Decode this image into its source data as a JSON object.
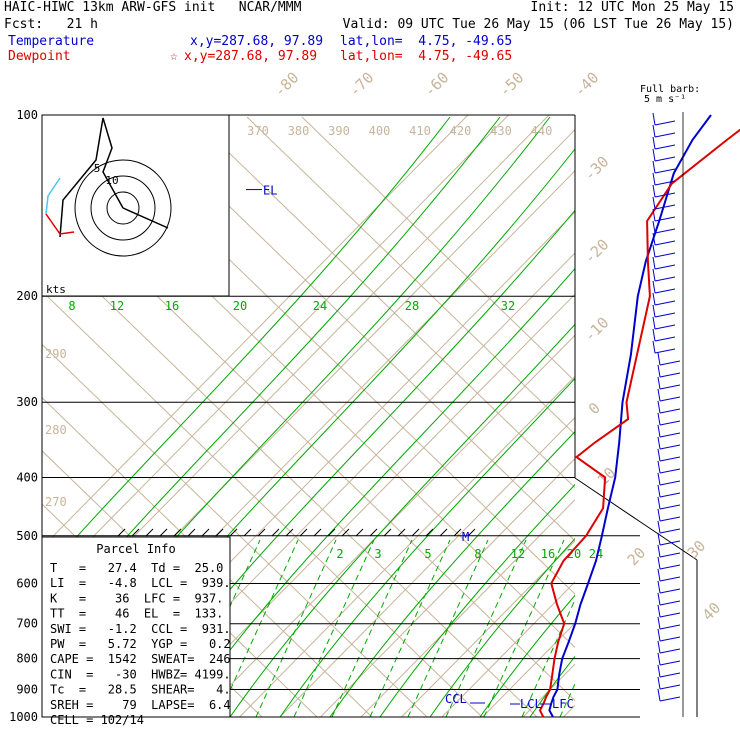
{
  "header": {
    "title_left": "HAIC-HIWC 13km ARW-GFS init   NCAR/MMM",
    "init": "Init: 12 UTC Mon 25 May 15",
    "fcst": "Fcst:   21 h",
    "valid": "Valid: 09 UTC Tue 26 May 15 (06 LST Tue 26 May 15)",
    "temp_label": "Temperature",
    "temp_xy": "x,y=287.68, 97.89",
    "temp_latlon": "lat,lon=  4.75, -49.65",
    "dew_label": "Dewpoint",
    "dew_star": "☆",
    "dew_xy": "x,y=287.68, 97.89",
    "dew_latlon": "lat,lon=  4.75, -49.65"
  },
  "barb_key": {
    "line1": "Full barb:",
    "line2": "5 m s⁻¹"
  },
  "colors": {
    "temperature": "#0000cc",
    "dewpoint": "#dd0000",
    "isotherm": "#c8b49a",
    "mixing_ratio": "#00aa00",
    "grid": "#000000"
  },
  "chart_data": {
    "type": "line",
    "title": "Skew-T log-P sounding",
    "ylabel": "Pressure (hPa)",
    "pressure_ticks": [
      "100",
      "200",
      "300",
      "400",
      "500",
      "600",
      "700",
      "800",
      "900",
      "1000"
    ],
    "isotherm_labels": [
      "-80",
      "-70",
      "-60",
      "-50",
      "-40",
      "-30",
      "-20",
      "-10",
      "0",
      "10",
      "20",
      "30",
      "40"
    ],
    "theta_labels_top": [
      "370",
      "380",
      "390",
      "400",
      "410",
      "420",
      "430",
      "440"
    ],
    "theta_labels_left": [
      "290",
      "280",
      "270"
    ],
    "mixing_ratio_labels_upper": [
      "8",
      "12",
      "16",
      "20",
      "24",
      "28",
      "32"
    ],
    "mixing_ratio_labels_lower": [
      "2",
      "3",
      "5",
      "8",
      "12",
      "16",
      "20",
      "24"
    ],
    "series": [
      {
        "name": "Temperature",
        "unit": "°C",
        "points": [
          [
            1000,
            27.4
          ],
          [
            975,
            24.9
          ],
          [
            950,
            23.7
          ],
          [
            925,
            22.6
          ],
          [
            900,
            21.8
          ],
          [
            850,
            18.6
          ],
          [
            800,
            15.5
          ],
          [
            750,
            13.0
          ],
          [
            700,
            10.2
          ],
          [
            650,
            6.8
          ],
          [
            600,
            3.6
          ],
          [
            550,
            0.0
          ],
          [
            500,
            -4.6
          ],
          [
            450,
            -9.8
          ],
          [
            400,
            -15.5
          ],
          [
            350,
            -23.0
          ],
          [
            300,
            -32.0
          ],
          [
            250,
            -41.5
          ],
          [
            200,
            -54.0
          ],
          [
            175,
            -60.5
          ],
          [
            150,
            -67.0
          ],
          [
            125,
            -75.0
          ],
          [
            110,
            -78.5
          ],
          [
            100,
            -80.0
          ]
        ]
      },
      {
        "name": "Dewpoint",
        "unit": "°C",
        "points": [
          [
            1000,
            25.0
          ],
          [
            975,
            22.6
          ],
          [
            950,
            21.8
          ],
          [
            925,
            20.8
          ],
          [
            900,
            20.0
          ],
          [
            850,
            16.9
          ],
          [
            800,
            13.6
          ],
          [
            750,
            10.4
          ],
          [
            700,
            7.5
          ],
          [
            650,
            1.0
          ],
          [
            600,
            -5.5
          ],
          [
            550,
            -8.0
          ],
          [
            500,
            -8.5
          ],
          [
            450,
            -11.0
          ],
          [
            400,
            -18.0
          ],
          [
            370,
            -30.0
          ],
          [
            350,
            -29.0
          ],
          [
            320,
            -26.5
          ],
          [
            300,
            -31.0
          ],
          [
            250,
            -40.0
          ],
          [
            200,
            -51.0
          ],
          [
            175,
            -60.0
          ],
          [
            150,
            -70.0
          ],
          [
            130,
            -73.0
          ],
          [
            110,
            -70.0
          ],
          [
            100,
            -68.0
          ]
        ]
      }
    ],
    "level_markers": [
      {
        "label": "EL",
        "pressure": 133
      },
      {
        "label": "CCL",
        "pressure": 931
      },
      {
        "label": "LCL",
        "pressure": 939
      },
      {
        "label": "LFC",
        "pressure": 937
      },
      {
        "label": "M",
        "pressure": 500
      }
    ],
    "hodograph": {
      "axis_label": "kts",
      "ring_labels": [
        "5",
        "10"
      ]
    }
  },
  "parcel_info": {
    "title": "Parcel Info",
    "rows": [
      "T   =   27.4  Td =  25.0",
      "LI  =   -4.8  LCL =  939.",
      "K   =    36  LFC =  937.",
      "TT  =    46  EL  =  133.",
      "SWI =   -1.2  CCL =  931.",
      "PW  =   5.72  YGP =   0.2",
      "CAPE =  1542  SWEAT=  246",
      "CIN  =   -30  HWBZ= 4199.",
      "Tc  =   28.5  SHEAR=   4.",
      "SREH =    79  LAPSE=  6.4",
      "CELL = 102/14"
    ]
  }
}
